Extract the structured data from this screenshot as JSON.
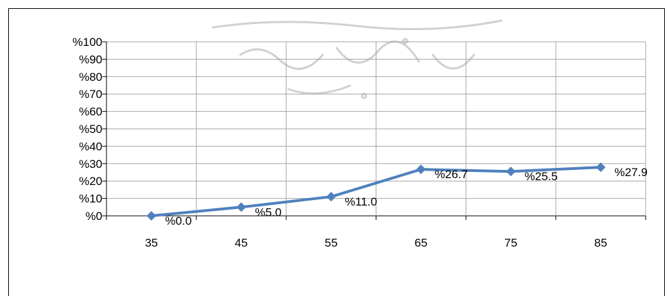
{
  "chart_data": {
    "type": "line",
    "x": [
      35,
      45,
      55,
      65,
      75,
      85
    ],
    "categories": [
      "35",
      "45",
      "55",
      "65",
      "75",
      "85"
    ],
    "series": [
      {
        "values": [
          0.0,
          5.0,
          11.0,
          26.7,
          25.5,
          27.9
        ],
        "color": "#4F81BD",
        "marker": "diamond"
      }
    ],
    "data_labels": [
      "%0.0",
      "%5.0",
      "%11.0",
      "%26.7",
      "%25.5",
      "%27.9"
    ],
    "y_tick_labels": [
      "%0",
      "%10",
      "%20",
      "%30",
      "%40",
      "%50",
      "%60",
      "%70",
      "%80",
      "%90",
      "%100"
    ],
    "y_ticks": [
      0,
      10,
      20,
      30,
      40,
      50,
      60,
      70,
      80,
      90,
      100
    ],
    "ylim": [
      0,
      100
    ],
    "grid": true,
    "legend": "none",
    "title": "",
    "xlabel": "",
    "ylabel": ""
  },
  "watermark_text": "پرتال جامع علوم انسانی"
}
